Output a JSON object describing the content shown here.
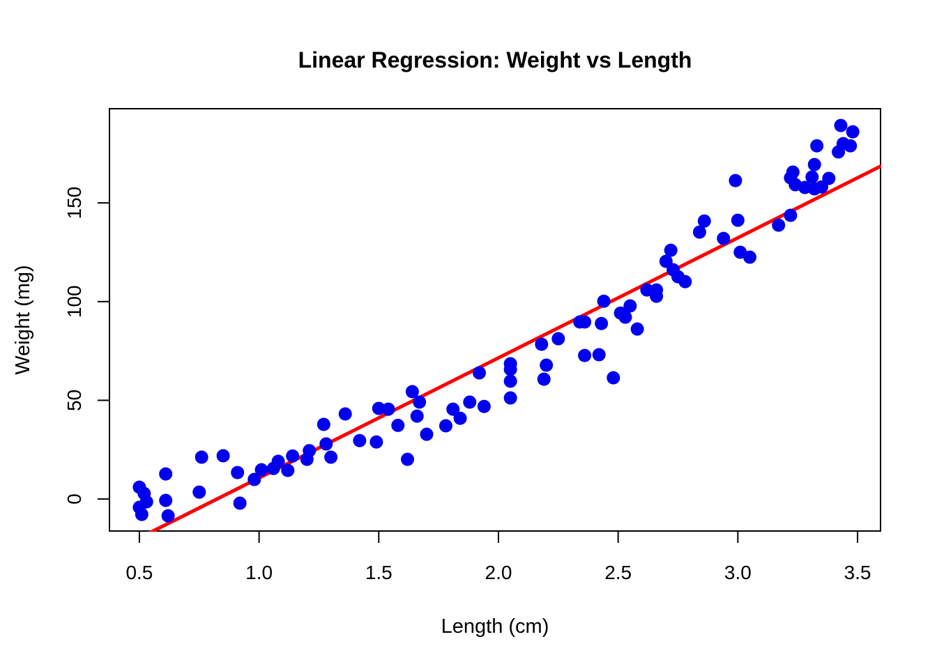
{
  "background": "#FFFFFF",
  "chart_data": {
    "type": "scatter",
    "title": "Linear Regression: Weight vs Length",
    "xlabel": "Length (cm)",
    "ylabel": "Weight (mg)",
    "xlim": [
      0.375,
      3.596
    ],
    "ylim": [
      -16.2,
      197.7
    ],
    "grid": false,
    "legend": "none",
    "point_color": "#0000EE",
    "line_color": "#FF0000",
    "box_color": "#000000",
    "x_ticks": [
      {
        "value": 0.5,
        "label": "0.5"
      },
      {
        "value": 1.0,
        "label": "1.0"
      },
      {
        "value": 1.5,
        "label": "1.5"
      },
      {
        "value": 2.0,
        "label": "2.0"
      },
      {
        "value": 2.5,
        "label": "2.5"
      },
      {
        "value": 3.0,
        "label": "3.0"
      },
      {
        "value": 3.5,
        "label": "3.5"
      }
    ],
    "y_ticks": [
      {
        "value": 0,
        "label": "0"
      },
      {
        "value": 50,
        "label": "50"
      },
      {
        "value": 100,
        "label": "100"
      },
      {
        "value": 150,
        "label": "150"
      }
    ],
    "regression_line": {
      "slope": 60.8,
      "intercept": -50.1
    },
    "points": [
      [
        0.5,
        6.0
      ],
      [
        0.52,
        2.8
      ],
      [
        0.53,
        -1.4
      ],
      [
        0.5,
        -4.2
      ],
      [
        0.51,
        -7.8
      ],
      [
        0.61,
        12.7
      ],
      [
        0.61,
        -0.7
      ],
      [
        0.62,
        -8.5
      ],
      [
        0.76,
        21.2
      ],
      [
        0.85,
        21.9
      ],
      [
        0.75,
        3.5
      ],
      [
        0.91,
        13.4
      ],
      [
        0.92,
        -2.1
      ],
      [
        0.98,
        9.9
      ],
      [
        1.01,
        14.8
      ],
      [
        1.08,
        19.1
      ],
      [
        1.06,
        15.5
      ],
      [
        1.12,
        14.5
      ],
      [
        1.14,
        21.8
      ],
      [
        1.21,
        24.5
      ],
      [
        1.2,
        20.1
      ],
      [
        1.27,
        37.8
      ],
      [
        1.28,
        27.9
      ],
      [
        1.3,
        21.2
      ],
      [
        1.36,
        43.1
      ],
      [
        1.42,
        29.6
      ],
      [
        1.49,
        28.9
      ],
      [
        1.5,
        45.9
      ],
      [
        1.54,
        45.5
      ],
      [
        1.58,
        37.3
      ],
      [
        1.62,
        20.1
      ],
      [
        1.64,
        54.4
      ],
      [
        1.67,
        49.1
      ],
      [
        1.66,
        42.0
      ],
      [
        1.7,
        32.8
      ],
      [
        1.78,
        37.1
      ],
      [
        1.81,
        45.5
      ],
      [
        1.84,
        40.9
      ],
      [
        1.88,
        49.1
      ],
      [
        1.94,
        46.9
      ],
      [
        1.92,
        63.9
      ],
      [
        2.05,
        68.5
      ],
      [
        2.05,
        65.7
      ],
      [
        2.05,
        59.7
      ],
      [
        2.05,
        51.2
      ],
      [
        2.18,
        78.4
      ],
      [
        2.2,
        67.8
      ],
      [
        2.19,
        60.7
      ],
      [
        2.25,
        81.2
      ],
      [
        2.34,
        89.7
      ],
      [
        2.36,
        89.7
      ],
      [
        2.43,
        88.9
      ],
      [
        2.36,
        72.7
      ],
      [
        2.42,
        73.1
      ],
      [
        2.48,
        61.4
      ],
      [
        2.44,
        100.2
      ],
      [
        2.51,
        94.2
      ],
      [
        2.53,
        92.1
      ],
      [
        2.55,
        97.8
      ],
      [
        2.58,
        86.1
      ],
      [
        2.62,
        105.9
      ],
      [
        2.66,
        105.9
      ],
      [
        2.66,
        102.7
      ],
      [
        2.72,
        126.0
      ],
      [
        2.7,
        120.4
      ],
      [
        2.73,
        116.1
      ],
      [
        2.75,
        112.6
      ],
      [
        2.78,
        110.1
      ],
      [
        2.84,
        135.2
      ],
      [
        2.86,
        140.8
      ],
      [
        2.94,
        132.0
      ],
      [
        2.99,
        161.3
      ],
      [
        3.0,
        141.2
      ],
      [
        3.01,
        125.0
      ],
      [
        3.05,
        122.5
      ],
      [
        3.17,
        138.7
      ],
      [
        3.22,
        143.7
      ],
      [
        3.23,
        165.6
      ],
      [
        3.22,
        162.7
      ],
      [
        3.31,
        163.1
      ],
      [
        3.38,
        162.4
      ],
      [
        3.24,
        159.2
      ],
      [
        3.28,
        157.8
      ],
      [
        3.32,
        157.1
      ],
      [
        3.35,
        158.1
      ],
      [
        3.33,
        178.9
      ],
      [
        3.32,
        169.4
      ],
      [
        3.43,
        189.2
      ],
      [
        3.48,
        186.0
      ],
      [
        3.44,
        180.0
      ],
      [
        3.47,
        178.9
      ],
      [
        3.42,
        175.8
      ]
    ]
  }
}
